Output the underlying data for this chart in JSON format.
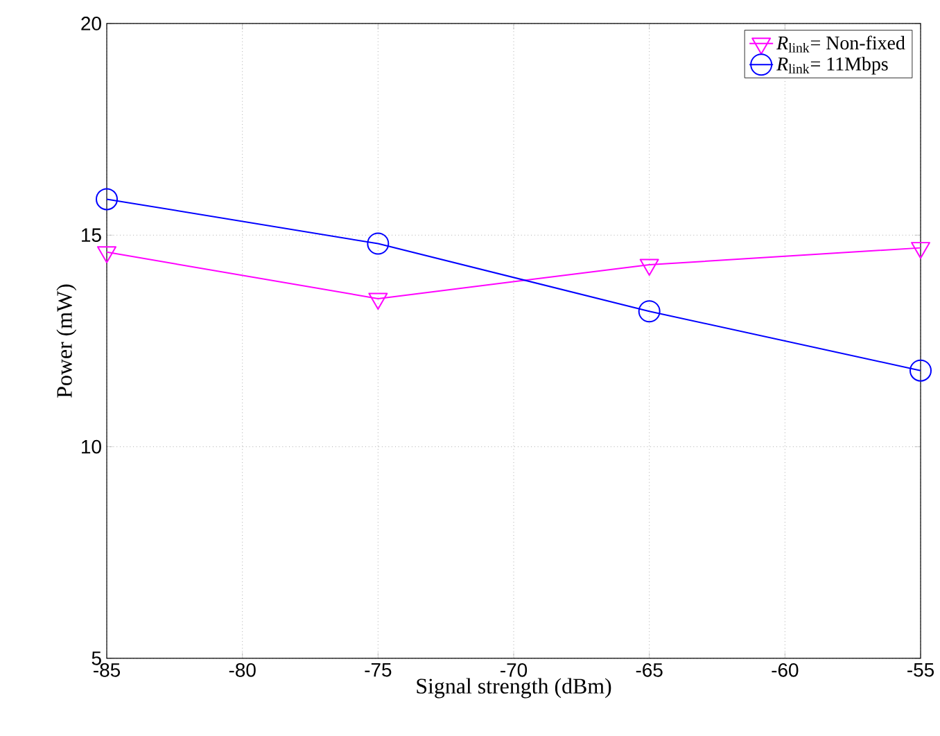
{
  "chart_data": {
    "type": "line",
    "xlabel": "Signal strength (dBm)",
    "ylabel": "Power (mW)",
    "x": [
      -85,
      -75,
      -65,
      -55
    ],
    "series": [
      {
        "name": "*R*$_{link}$= Non-fixed",
        "color": "#ff00ff",
        "marker": "triangle",
        "values": [
          14.6,
          13.5,
          14.3,
          14.7
        ]
      },
      {
        "name": "*R*$_{link}$= 11Mbps",
        "color": "#0000ff",
        "marker": "circle",
        "values": [
          15.85,
          14.8,
          13.2,
          11.8
        ]
      }
    ],
    "xlim": [
      -85,
      -55
    ],
    "xticks": [
      -85,
      -80,
      -75,
      -70,
      -65,
      -60,
      -55
    ],
    "ylim": [
      5,
      20
    ],
    "yticks": [
      5,
      10,
      15,
      20
    ],
    "grid": true,
    "legend": "top right",
    "line_style": "solid"
  }
}
